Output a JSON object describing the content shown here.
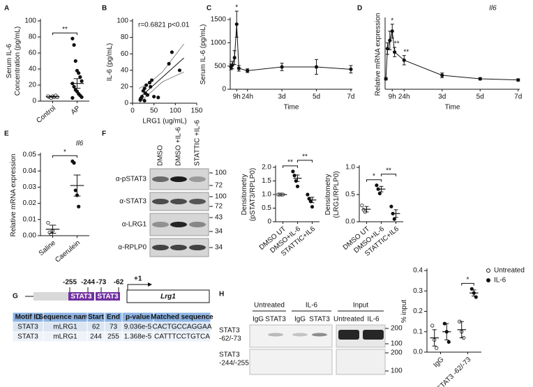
{
  "chart_data": [
    {
      "type": "dot",
      "panel": "A",
      "ylabel": [
        "Serum IL-6",
        "Concentration (pg/mL)"
      ],
      "categories": [
        "Control",
        "AP"
      ],
      "markers": [
        "open",
        "filled"
      ],
      "points": [
        [
          6,
          5,
          4,
          6,
          5,
          7,
          5,
          6
        ],
        [
          78,
          70,
          50,
          38,
          35,
          30,
          25,
          22,
          18,
          14,
          12,
          9,
          7,
          5,
          4
        ]
      ],
      "means": [
        5.5,
        22
      ],
      "errors": [
        0.5,
        6
      ],
      "ylim": [
        0,
        100
      ],
      "yticks": [
        0,
        20,
        40,
        60,
        80,
        100
      ],
      "annotations": [
        "**"
      ]
    },
    {
      "type": "scatter",
      "panel": "B",
      "ylabel": "IL-6 (pg/mL)",
      "xlabel": "LRG1 (ug/mL)",
      "annotation": "r=0.6821  p<0.01",
      "x": [
        18,
        20,
        22,
        25,
        28,
        30,
        32,
        35,
        40,
        42,
        45,
        50,
        60,
        85,
        92,
        110,
        28
      ],
      "y": [
        4,
        6,
        8,
        15,
        18,
        12,
        22,
        10,
        25,
        20,
        28,
        8,
        7,
        48,
        62,
        40,
        3
      ],
      "fit": {
        "x": [
          15,
          120
        ],
        "y": [
          6,
          55
        ]
      },
      "ci_upper": {
        "x": [
          15,
          40,
          70,
          120
        ],
        "y": [
          18,
          25,
          38,
          72
        ]
      },
      "ci_lower": {
        "x": [
          15,
          40,
          70,
          120
        ],
        "y": [
          0,
          12,
          26,
          38
        ]
      },
      "xlim": [
        0,
        150
      ],
      "xticks": [
        0,
        50,
        100,
        150
      ],
      "ylim": [
        0,
        100
      ],
      "yticks": [
        0,
        20,
        40,
        60,
        80,
        100
      ]
    },
    {
      "type": "line",
      "panel": "C",
      "ylabel": "Serum IL-6 (pg/mL)",
      "xlabel": "Time",
      "x": [
        1,
        3,
        6,
        9,
        12,
        24,
        72,
        120,
        168
      ],
      "values": [
        480,
        520,
        680,
        1400,
        450,
        400,
        480,
        480,
        430
      ],
      "errors": [
        60,
        80,
        150,
        280,
        60,
        40,
        80,
        160,
        80
      ],
      "xlim": [
        0,
        170
      ],
      "xticks": [
        {
          "value": 9,
          "label": "9h"
        },
        {
          "value": 24,
          "label": "24h"
        },
        {
          "value": 72,
          "label": "3d"
        },
        {
          "value": 120,
          "label": "5d"
        },
        {
          "value": 168,
          "label": "7d"
        }
      ],
      "ylim": [
        0,
        1500
      ],
      "yticks": [
        0,
        500,
        1000,
        1500
      ],
      "annotations": [
        "*"
      ]
    },
    {
      "type": "line",
      "panel": "D",
      "title": "Il6",
      "ylabel": "Relative mRNA expression",
      "xlabel": "Time",
      "x": [
        1,
        3,
        6,
        9,
        12,
        24,
        72,
        120,
        168
      ],
      "values": [
        0.9,
        3.5,
        4.2,
        5.0,
        3.2,
        2.5,
        1.2,
        0.9,
        0.8
      ],
      "errors": [
        0.1,
        0.5,
        0.8,
        0.6,
        0.4,
        0.4,
        0.2,
        0.1,
        0.1
      ],
      "xlim": [
        0,
        170
      ],
      "xticks": [
        {
          "value": 9,
          "label": "9h"
        },
        {
          "value": 24,
          "label": "24h"
        },
        {
          "value": 72,
          "label": "3d"
        },
        {
          "value": 120,
          "label": "5d"
        },
        {
          "value": 168,
          "label": "7d"
        }
      ],
      "ylim": [
        0,
        6
      ],
      "annotations": [
        "*",
        "**",
        "**"
      ]
    },
    {
      "type": "dot",
      "panel": "E",
      "title": "Il6",
      "ylabel": "Relative mRNA expression",
      "categories": [
        "Saline",
        "Caerulein"
      ],
      "markers": [
        "open",
        "filled"
      ],
      "points": [
        [
          0.008,
          0.002,
          0.001,
          0.003
        ],
        [
          0.046,
          0.045,
          0.028,
          0.025,
          0.018
        ]
      ],
      "means": [
        0.004,
        0.031
      ],
      "errors": [
        0.0025,
        0.0065
      ],
      "ylim": [
        0,
        0.05
      ],
      "yticks": [
        {
          "value": 0,
          "label": "0.00"
        },
        {
          "value": 0.01,
          "label": "0.01"
        },
        {
          "value": 0.02,
          "label": "0.02"
        },
        {
          "value": 0.03,
          "label": "0.03"
        },
        {
          "value": 0.04,
          "label": "0.04"
        },
        {
          "value": 0.05,
          "label": "0.05"
        }
      ],
      "annotations": [
        "*"
      ]
    },
    {
      "type": "dot",
      "ylabel": [
        "Densitometry",
        "(pSTAT3/RPLP0)"
      ],
      "categories": [
        "DMSO UT",
        "DMSO+IL-6",
        "STATTIC+IL6"
      ],
      "markers": [
        "open",
        "filled",
        "filled"
      ],
      "points": [
        [
          1,
          1,
          1,
          1
        ],
        [
          1.85,
          1.7,
          1.5,
          1.3
        ],
        [
          1.0,
          0.85,
          0.75,
          0.55
        ]
      ],
      "means": [
        1,
        1.6,
        0.8
      ],
      "errors": [
        0,
        0.12,
        0.1
      ],
      "ylim": [
        0,
        2
      ],
      "yticks": [
        0,
        0.5,
        {
          "value": 1,
          "label": "1.0"
        },
        1.5,
        {
          "value": 2,
          "label": "2.0"
        }
      ],
      "annotations": [
        "**",
        "**"
      ]
    },
    {
      "type": "dot",
      "ylabel": [
        "Densitometry",
        "(LRG1/RPLP0)"
      ],
      "categories": [
        "DMSO UT",
        "DMSO+IL-6",
        "STATTIC+IL6"
      ],
      "markers": [
        "open",
        "filled",
        "filled"
      ],
      "points": [
        [
          0.3,
          0.22,
          0.18
        ],
        [
          0.67,
          0.6,
          0.52
        ],
        [
          0.28,
          0.15,
          0.05
        ]
      ],
      "means": [
        0.23,
        0.6,
        0.15
      ],
      "errors": [
        0.05,
        0.05,
        0.07
      ],
      "ylim": [
        0,
        1
      ],
      "yticks": [
        {
          "value": 0,
          "label": "0.0"
        },
        0.5,
        {
          "value": 1,
          "label": "1.0"
        }
      ],
      "annotations": [
        "*",
        "**"
      ]
    },
    {
      "type": "grouped_dot",
      "ylabel": "% input",
      "categories": [
        "IgG",
        "STAT3 -62/-73"
      ],
      "series": [
        {
          "name": "Untreated",
          "marker": "open",
          "points": [
            [
              0.13,
              0.06,
              0.02
            ],
            [
              0.15,
              0.1,
              0.07
            ]
          ],
          "means": [
            0.07,
            0.11
          ],
          "errors": [
            0.04,
            0.04
          ]
        },
        {
          "name": "IL-6",
          "marker": "filled",
          "points": [
            [
              0.14,
              0.1,
              0.05
            ],
            [
              0.31,
              0.29,
              0.27
            ]
          ],
          "means": [
            0.1,
            0.29
          ],
          "errors": [
            0.04,
            0.015
          ]
        }
      ],
      "ylim": [
        0,
        0.4
      ],
      "yticks": [
        {
          "value": 0,
          "label": "0.0"
        },
        0.1,
        0.2,
        0.3,
        0.4
      ],
      "annotations": [
        "*"
      ]
    }
  ],
  "blots": {
    "panel": "F",
    "columns": [
      "DMSO",
      "DMSO +IL-6",
      "STATTIC +IL-6"
    ],
    "rows": [
      {
        "label": "α-pSTAT3",
        "markers": [
          100,
          72
        ]
      },
      {
        "label": "α-STAT3",
        "markers": [
          100,
          72
        ]
      },
      {
        "label": "α-LRG1",
        "markers": [
          43,
          34
        ]
      },
      {
        "label": "α-RPLP0",
        "markers": [
          34
        ]
      }
    ]
  },
  "promoter": {
    "panel": "G",
    "sites": [
      "-255",
      "-244",
      "-73",
      "-62"
    ],
    "boxes": [
      "STAT3",
      "STAT3"
    ],
    "tss": "+1",
    "gene": "Lrg1"
  },
  "table": {
    "header": [
      "Motif ID",
      "Sequence name",
      "Start",
      "End",
      "p-value",
      "Matched sequence"
    ],
    "rows": [
      [
        "STAT3",
        "mLRG1",
        62,
        73,
        "9.036e-5",
        "CACTGCCAGGAA"
      ],
      [
        "STAT3",
        "mLRG1",
        244,
        255,
        "1.368e-5",
        "CATTTCCTGTCA"
      ]
    ]
  },
  "chip": {
    "panel": "H",
    "groups": [
      "Untreated",
      "IL-6",
      "Input"
    ],
    "lanes": [
      "IgG",
      "STAT3",
      "IgG",
      "STAT3",
      "Untreated",
      "IL-6"
    ],
    "rows": [
      {
        "label": [
          "STAT3",
          "-62/-73"
        ],
        "markers": [
          200,
          100
        ]
      },
      {
        "label": [
          "STAT3",
          "-244/-255"
        ],
        "markers": [
          200,
          100
        ]
      }
    ]
  }
}
